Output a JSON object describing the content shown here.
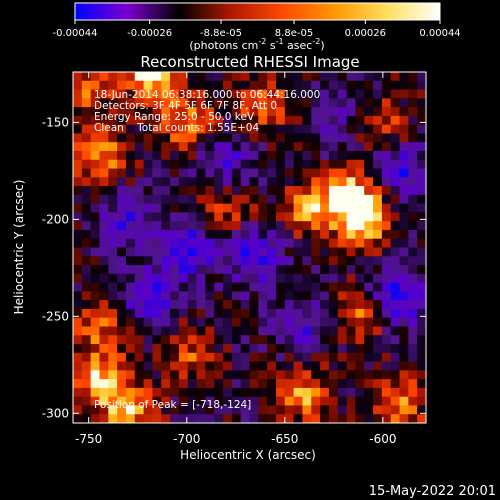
{
  "chart_data": {
    "type": "heatmap",
    "title": "Reconstructed RHESSI Image",
    "xlabel": "Heliocentric X (arcsec)",
    "ylabel": "Heliocentric Y (arcsec)",
    "xlim": [
      -758,
      -578
    ],
    "ylim": [
      -305,
      -124
    ],
    "x_ticks": [
      "-750",
      "-700",
      "-650",
      "-600"
    ],
    "x_tick_values": [
      -750,
      -700,
      -650,
      -600
    ],
    "y_ticks": [
      "-150",
      "-200",
      "-250",
      "-300"
    ],
    "y_tick_values": [
      -150,
      -200,
      -250,
      -300
    ],
    "colorbar": {
      "ticks": [
        "-0.00044",
        "-0.00026",
        "-8.8e-05",
        "8.8e-05",
        "0.00026",
        "0.00044"
      ],
      "tick_values": [
        -0.00044,
        -0.00026,
        -8.8e-05,
        8.8e-05,
        0.00026,
        0.00044
      ],
      "range": [
        -0.00044,
        0.00044
      ],
      "unit_parts": [
        "(photons cm",
        "-2",
        " s",
        "-1",
        " asec",
        "-2",
        ")"
      ],
      "colors": [
        "#0000ff",
        "#7a00d0",
        "#000000",
        "#b01800",
        "#ff4a00",
        "#ff9a00",
        "#ffe060",
        "#ffffff"
      ]
    },
    "info_lines": [
      "18-Jun-2014 06:38:16.000 to 06:44:16.000",
      "Detectors: 3F 4F 5F 6F 7F 8F, Att 0",
      "Energy Range: 25.0 - 50.0 keV",
      "Clean    Total counts: 1.55E+04"
    ],
    "peak_label": "Position of Peak = [-718,-124]",
    "peak": [
      -718,
      -124
    ],
    "hot_regions": [
      {
        "x": -718,
        "y": -126,
        "level": 1.0
      },
      {
        "x": -616,
        "y": -188,
        "level": 0.95
      },
      {
        "x": -610,
        "y": -202,
        "level": 0.9
      },
      {
        "x": -744,
        "y": -168,
        "level": 0.75
      },
      {
        "x": -700,
        "y": -150,
        "level": 0.7
      },
      {
        "x": -660,
        "y": -140,
        "level": 0.65
      },
      {
        "x": -638,
        "y": -195,
        "level": 0.7
      },
      {
        "x": -745,
        "y": -282,
        "level": 0.85
      },
      {
        "x": -730,
        "y": -300,
        "level": 0.8
      },
      {
        "x": -745,
        "y": -255,
        "level": 0.6
      },
      {
        "x": -640,
        "y": -290,
        "level": 0.75
      },
      {
        "x": -612,
        "y": -250,
        "level": 0.65
      },
      {
        "x": -592,
        "y": -295,
        "level": 0.7
      },
      {
        "x": -700,
        "y": -270,
        "level": 0.55
      },
      {
        "x": -750,
        "y": -135,
        "level": 0.55
      },
      {
        "x": -680,
        "y": -195,
        "level": 0.45
      },
      {
        "x": -600,
        "y": -150,
        "level": 0.5
      }
    ],
    "cold_regions": [
      {
        "x": -700,
        "y": -215,
        "level": -0.85
      },
      {
        "x": -665,
        "y": -220,
        "level": -0.75
      },
      {
        "x": -720,
        "y": -240,
        "level": -0.7
      },
      {
        "x": -592,
        "y": -240,
        "level": -0.9
      },
      {
        "x": -590,
        "y": -175,
        "level": -0.7
      },
      {
        "x": -730,
        "y": -200,
        "level": -0.6
      },
      {
        "x": -640,
        "y": -255,
        "level": -0.55
      },
      {
        "x": -680,
        "y": -170,
        "level": -0.5
      },
      {
        "x": -625,
        "y": -145,
        "level": -0.45
      }
    ]
  },
  "footer": {
    "date": "15-May-2022 20:01"
  }
}
